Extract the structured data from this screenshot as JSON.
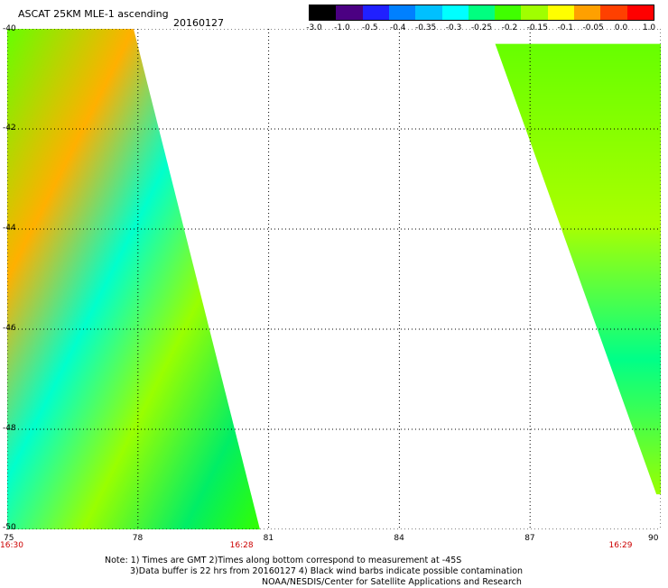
{
  "header": {
    "title": "ASCAT 25KM MLE-1 ascending",
    "date": "20160127"
  },
  "colorbar": {
    "labels": [
      "-3.0",
      "-1.0",
      "-0.5",
      "-0.4",
      "-0.35",
      "-0.3",
      "-0.25",
      "-0.2",
      "-0.15",
      "-0.1",
      "-0.05",
      "0.0",
      "1.0"
    ],
    "colors": [
      "#000000",
      "#4b0082",
      "#2020ff",
      "#0080ff",
      "#00c0ff",
      "#00ffff",
      "#00ff80",
      "#40ff00",
      "#a0ff00",
      "#ffff00",
      "#ffa000",
      "#ff4000",
      "#ff0000"
    ]
  },
  "map": {
    "lon_ticks": [
      "75",
      "78",
      "81",
      "84",
      "87",
      "90"
    ],
    "lat_ticks": [
      "-40",
      "-42",
      "-44",
      "-46",
      "-48",
      "-50"
    ],
    "lon_range": [
      75,
      90
    ],
    "lat_range": [
      -40,
      -50
    ],
    "times": [
      {
        "label": "16:30",
        "lon": 75
      },
      {
        "label": "16:28",
        "lon": 80.4
      },
      {
        "label": "16:29",
        "lon": 89.1
      }
    ],
    "swaths": [
      {
        "lat_top": -40,
        "lat_bottom": -50,
        "lon_left": 75,
        "lon_right_top": 77.9,
        "lon_right_bottom": 80.8
      },
      {
        "lat_top": -40.3,
        "lat_bottom": -49.3,
        "lon_left_top": 86.2,
        "lon_left_bottom": 89.9,
        "lon_right": 90
      }
    ]
  },
  "notes": {
    "line1": "Note: 1) Times are GMT 2)Times along bottom correspond to measurement at -45S",
    "line2": "3)Data buffer is 22 hrs from 20160127 4) Black wind barbs indicate possible contamination",
    "line3": "NOAA/NESDIS/Center for Satellite Applications and Research"
  }
}
